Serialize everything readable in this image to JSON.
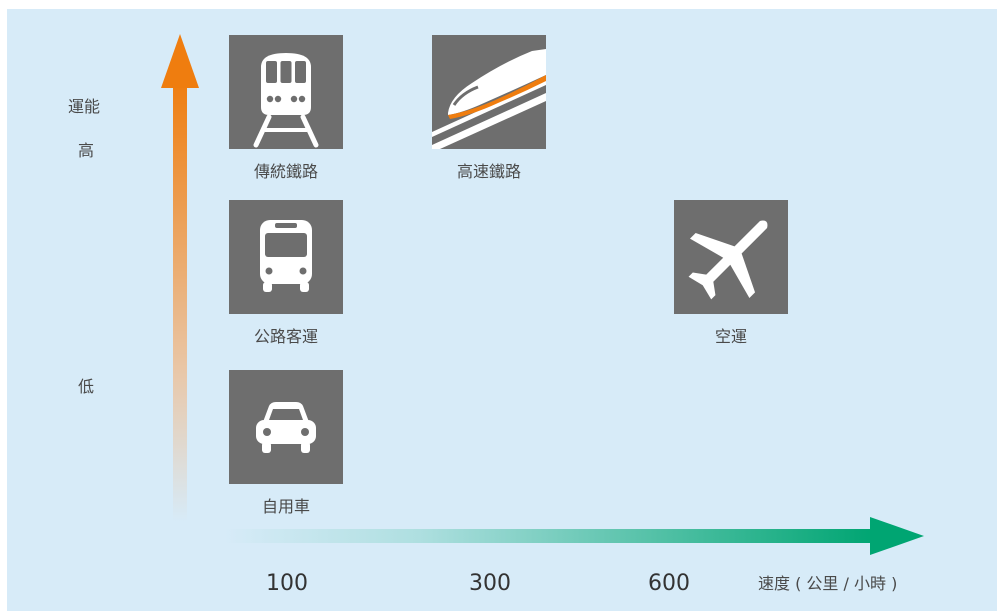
{
  "y_axis": {
    "title": "運能",
    "high_label": "高",
    "low_label": "低",
    "color": "#ef7d0f"
  },
  "x_axis": {
    "ticks": [
      "100",
      "300",
      "600"
    ],
    "title": "速度 ( 公里 / 小時 )",
    "color": "#00a572"
  },
  "modes": [
    {
      "label": "傳統鐵路",
      "icon": "train-icon"
    },
    {
      "label": "高速鐵路",
      "icon": "high-speed-rail-icon"
    },
    {
      "label": "公路客運",
      "icon": "bus-icon"
    },
    {
      "label": "空運",
      "icon": "airplane-icon"
    },
    {
      "label": "自用車",
      "icon": "car-icon"
    }
  ],
  "colors": {
    "background": "#d7ebf8",
    "tile": "#6e6e6e",
    "hsr_accent": "#ef7d0f"
  }
}
